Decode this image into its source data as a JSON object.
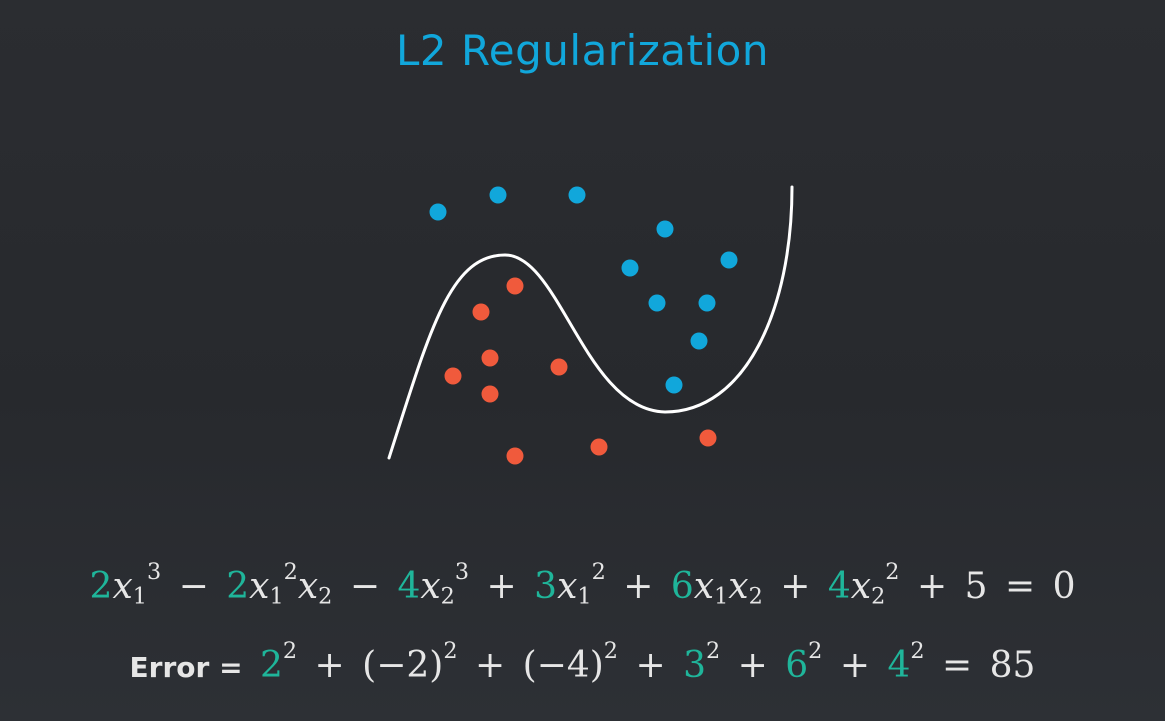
{
  "title": "L2 Regularization",
  "colors": {
    "title": "#11a7db",
    "blue_point": "#11a7db",
    "red_point": "#f05a3c",
    "curve": "#ffffff",
    "coefficient": "#1fb59a",
    "text": "#e6e6e6"
  },
  "equation": {
    "coefficients": [
      "2",
      "2",
      "4",
      "3",
      "6",
      "4"
    ],
    "constant": "5",
    "rhs": "0"
  },
  "error": {
    "label": "Error =",
    "terms": [
      "2",
      "(−2)",
      "(−4)",
      "3",
      "6",
      "4"
    ],
    "result": "85"
  }
}
